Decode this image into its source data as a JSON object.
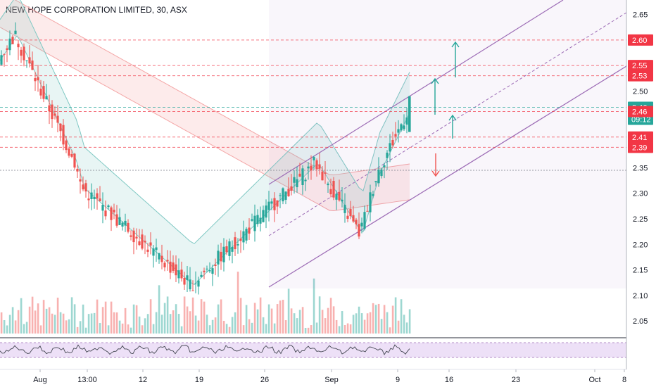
{
  "header": {
    "symbol_title": "NEW HOPE CORPORATION LIMITED, 30, ASX"
  },
  "colors": {
    "up": "#26a69a",
    "down": "#ef5350",
    "channel": "#9c6bb5",
    "ribbon_upper": "#f4a6a6",
    "ribbon_lower": "#7fc8c3",
    "rsi_band": "#ede0f7",
    "price_tag_red": "#f23645",
    "price_tag_teal": "#26a69a"
  },
  "chart_data": {
    "type": "candlestick",
    "title": "NEW HOPE CORPORATION LIMITED, 30, ASX",
    "xlabel": "",
    "ylabel": "",
    "ylim": [
      2.02,
      2.67
    ],
    "y_ticks": [
      "2.65",
      "2.60",
      "2.55",
      "2.50",
      "2.45",
      "2.40",
      "2.35",
      "2.30",
      "2.25",
      "2.20",
      "2.15",
      "2.10",
      "2.05"
    ],
    "x_ticks": [
      "Aug",
      "13:00",
      "12",
      "19",
      "26",
      "Sep",
      "9",
      "16",
      "23",
      "Oct",
      "8"
    ],
    "price_key_points": [
      {
        "label": "start",
        "value": 2.56
      },
      {
        "label": "early high",
        "value": 2.61
      },
      {
        "label": "Aug dip",
        "value": 2.36
      },
      {
        "label": "Aug mid",
        "value": 2.31
      },
      {
        "label": "Aug low",
        "value": 2.12
      },
      {
        "label": "late Aug peak",
        "value": 2.36
      },
      {
        "label": "Sep dip",
        "value": 2.22
      },
      {
        "label": "Sep rise",
        "value": 2.34
      },
      {
        "label": "last",
        "value": 2.46
      }
    ],
    "horizontal_levels": [
      {
        "value": 2.6,
        "label": "2.60",
        "tag": "red"
      },
      {
        "value": 2.55,
        "label": "2.55",
        "tag": "red"
      },
      {
        "value": 2.53,
        "label": "2.53",
        "tag": "red"
      },
      {
        "value": 2.46,
        "label": "2.46",
        "tag": "teal"
      },
      {
        "value": 2.46,
        "label": "2.46",
        "tag": "red"
      },
      {
        "value": 2.41,
        "label": "2.41",
        "tag": "red"
      },
      {
        "value": 2.39,
        "label": "2.39",
        "tag": "red"
      }
    ],
    "countdown_label": "09:12",
    "rsi_panel": true
  }
}
